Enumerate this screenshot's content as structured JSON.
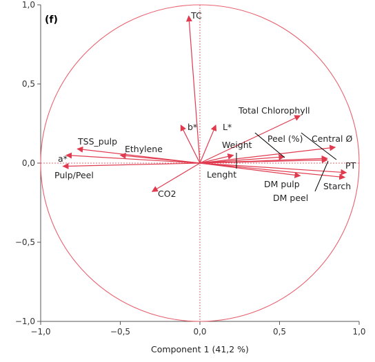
{
  "chart_data": {
    "type": "scatter",
    "subtype": "pca-loading-plot",
    "panel_label": "(f)",
    "xlabel": "Component 1  (41,2 %)",
    "ylabel": "",
    "xlim": [
      -1.0,
      1.0
    ],
    "ylim": [
      -1.0,
      1.0
    ],
    "x_ticks": [
      {
        "value": -1.0,
        "label": "−1,0"
      },
      {
        "value": -0.5,
        "label": "−0,5"
      },
      {
        "value": 0.0,
        "label": "0,0"
      },
      {
        "value": 0.5,
        "label": "0,5"
      },
      {
        "value": 1.0,
        "label": "1,0"
      }
    ],
    "y_ticks": [
      {
        "value": 1.0,
        "label": "1,0"
      },
      {
        "value": 0.5,
        "label": "0,5"
      },
      {
        "value": 0.0,
        "label": "0,0"
      },
      {
        "value": -0.5,
        "label": "−0,5"
      },
      {
        "value": -1.0,
        "label": "−1,0"
      }
    ],
    "unit_circle": true,
    "zero_lines": "dotted",
    "grid": false,
    "loadings": [
      {
        "name": "TC",
        "x": -0.07,
        "y": 0.93
      },
      {
        "name": "b*",
        "x": -0.12,
        "y": 0.24
      },
      {
        "name": "L*",
        "x": 0.1,
        "y": 0.24
      },
      {
        "name": "Total Chlorophyll",
        "x": 0.63,
        "y": 0.3
      },
      {
        "name": "Peel (%)",
        "x": 0.8,
        "y": 0.03
      },
      {
        "name": "Central Ø",
        "x": 0.85,
        "y": 0.1
      },
      {
        "name": "Weight",
        "x": 0.53,
        "y": 0.04
      },
      {
        "name": "Lenght",
        "x": 0.21,
        "y": 0.05
      },
      {
        "name": "PT",
        "x": 0.92,
        "y": -0.06
      },
      {
        "name": "Starch",
        "x": 0.91,
        "y": -0.09
      },
      {
        "name": "DM pulp",
        "x": 0.63,
        "y": -0.08
      },
      {
        "name": "DM peel",
        "x": 0.8,
        "y": 0.02
      },
      {
        "name": "CO2",
        "x": -0.3,
        "y": -0.18
      },
      {
        "name": "Ethylene",
        "x": -0.5,
        "y": 0.05
      },
      {
        "name": "TSS_pulp",
        "x": -0.77,
        "y": 0.09
      },
      {
        "name": "a*",
        "x": -0.84,
        "y": 0.05
      },
      {
        "name": "Pulp/Peel",
        "x": -0.86,
        "y": -0.02
      }
    ],
    "colors": {
      "vector": "#e03a4e",
      "circle": "#e8606e",
      "reference_lines": "#e8606e",
      "axis": "#555555",
      "leader_line": "#000000"
    }
  }
}
